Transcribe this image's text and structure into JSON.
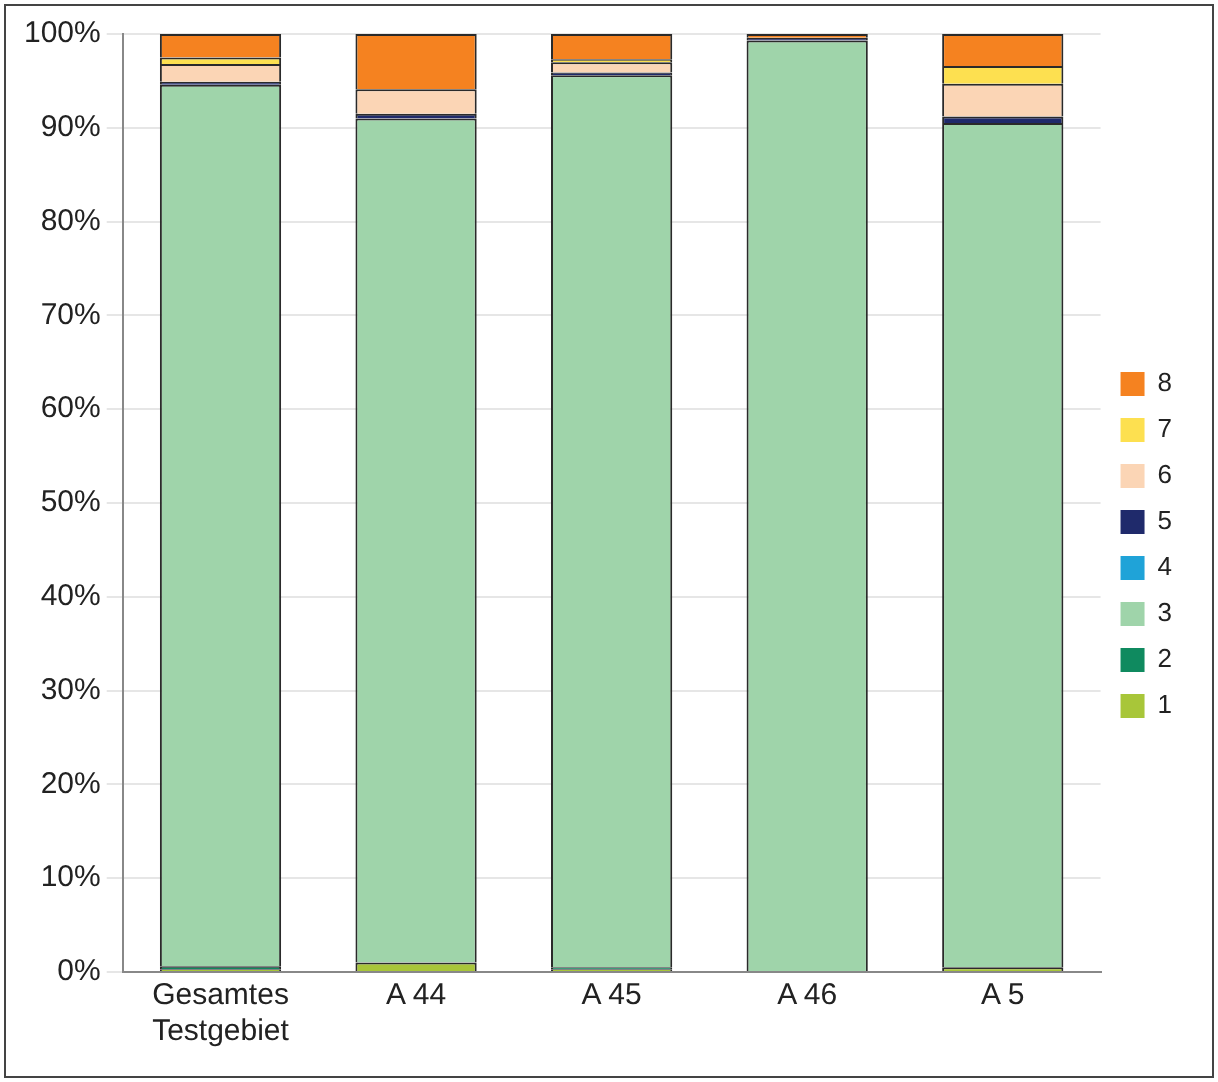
{
  "chart_data": {
    "type": "bar",
    "stacked": true,
    "categories": [
      "Gesamtes Testgebiet",
      "A 44",
      "A 45",
      "A 46",
      "A 5"
    ],
    "series": [
      {
        "name": "1",
        "color": "#a8c639",
        "values": [
          0.3,
          1.0,
          0.3,
          0,
          0.5
        ]
      },
      {
        "name": "2",
        "color": "#0f8a5f",
        "values": [
          0.3,
          0,
          0.2,
          0,
          0
        ]
      },
      {
        "name": "3",
        "color": "#9fd4aa",
        "values": [
          94.0,
          90.0,
          95.1,
          99.3,
          90.0
        ]
      },
      {
        "name": "4",
        "color": "#1fa3d8",
        "values": [
          0,
          0,
          0,
          0,
          0
        ]
      },
      {
        "name": "5",
        "color": "#1f2a6b",
        "values": [
          0.3,
          0.5,
          0.3,
          0.3,
          0.7
        ]
      },
      {
        "name": "6",
        "color": "#fbd5b5",
        "values": [
          1.9,
          2.6,
          1.1,
          0,
          3.5
        ]
      },
      {
        "name": "7",
        "color": "#fde050",
        "values": [
          0.7,
          0,
          0.3,
          0,
          1.9
        ]
      },
      {
        "name": "8",
        "color": "#f58220",
        "values": [
          2.5,
          5.9,
          2.7,
          0.4,
          3.4
        ]
      }
    ],
    "ylim": [
      0,
      100
    ],
    "yticks": [
      {
        "value": 0,
        "label": "0%"
      },
      {
        "value": 10,
        "label": "10%"
      },
      {
        "value": 20,
        "label": "20%"
      },
      {
        "value": 30,
        "label": "30%"
      },
      {
        "value": 40,
        "label": "40%"
      },
      {
        "value": 50,
        "label": "50%"
      },
      {
        "value": 60,
        "label": "60%"
      },
      {
        "value": 70,
        "label": "70%"
      },
      {
        "value": 80,
        "label": "80%"
      },
      {
        "value": 90,
        "label": "90%"
      },
      {
        "value": 100,
        "label": "100%"
      }
    ],
    "grid": "y",
    "legend": "right"
  }
}
